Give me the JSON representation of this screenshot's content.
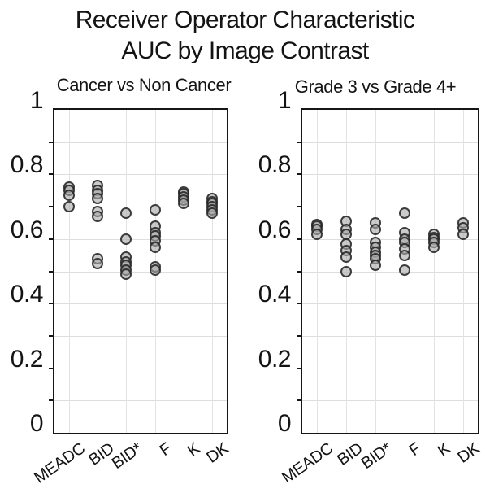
{
  "title": {
    "line1": "Receiver Operator Characteristic",
    "line2": "AUC by Image Contrast"
  },
  "colors": {
    "point_fill": "#cbcbcb",
    "point_stroke": "#2a2a2a",
    "gridline": "#dedede",
    "axis_border": "#161616",
    "background": "#ffffff"
  },
  "chart_data": [
    {
      "type": "scatter",
      "title": "Cancer vs Non Cancer",
      "categories": [
        "MEADC",
        "BID",
        "BID*",
        "F",
        "K",
        "DK"
      ],
      "xlabel": "",
      "ylabel": "",
      "ylim": [
        0,
        1
      ],
      "ytick_labels": [
        "0",
        "0.2",
        "0.4",
        "0.6",
        "0.8",
        "1"
      ],
      "ytick_values": [
        0,
        0.2,
        0.4,
        0.6,
        0.8,
        1
      ],
      "minor_grid_step": 0.1,
      "grid": true,
      "legend": "none",
      "series": [
        {
          "name": "MEADC",
          "values": [
            0.76,
            0.75,
            0.735,
            0.7
          ]
        },
        {
          "name": "BID",
          "values": [
            0.765,
            0.75,
            0.74,
            0.725,
            0.685,
            0.67,
            0.54,
            0.525
          ]
        },
        {
          "name": "BID*",
          "values": [
            0.68,
            0.6,
            0.545,
            0.53,
            0.52,
            0.505,
            0.49
          ]
        },
        {
          "name": "F",
          "values": [
            0.69,
            0.64,
            0.62,
            0.61,
            0.595,
            0.575,
            0.515,
            0.505
          ]
        },
        {
          "name": "K",
          "values": [
            0.745,
            0.74,
            0.73,
            0.72,
            0.71
          ]
        },
        {
          "name": "DK",
          "values": [
            0.725,
            0.715,
            0.71,
            0.7,
            0.69,
            0.68
          ]
        }
      ]
    },
    {
      "type": "scatter",
      "title": "Grade 3 vs Grade 4+",
      "categories": [
        "MEADC",
        "BID",
        "BID*",
        "F",
        "K",
        "DK"
      ],
      "xlabel": "",
      "ylabel": "",
      "ylim": [
        0,
        1
      ],
      "ytick_labels": [
        "0",
        "0.2",
        "0.4",
        "0.6",
        "0.8",
        "1"
      ],
      "ytick_values": [
        0,
        0.2,
        0.4,
        0.6,
        0.8,
        1
      ],
      "minor_grid_step": 0.1,
      "grid": true,
      "legend": "none",
      "series": [
        {
          "name": "MEADC",
          "values": [
            0.645,
            0.64,
            0.63,
            0.615
          ]
        },
        {
          "name": "BID",
          "values": [
            0.655,
            0.63,
            0.615,
            0.585,
            0.565,
            0.545,
            0.5
          ]
        },
        {
          "name": "BID*",
          "values": [
            0.65,
            0.63,
            0.59,
            0.575,
            0.56,
            0.55,
            0.54,
            0.52
          ]
        },
        {
          "name": "F",
          "values": [
            0.68,
            0.62,
            0.6,
            0.59,
            0.57,
            0.55,
            0.505
          ]
        },
        {
          "name": "K",
          "values": [
            0.615,
            0.605,
            0.6,
            0.59,
            0.575
          ]
        },
        {
          "name": "DK",
          "values": [
            0.65,
            0.635,
            0.615
          ]
        }
      ]
    }
  ]
}
